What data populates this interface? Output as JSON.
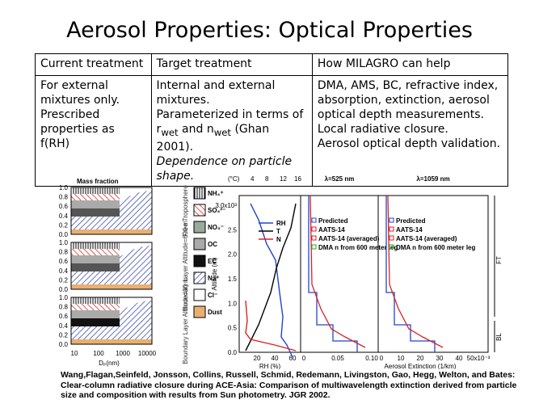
{
  "header": {
    "title": "Aerosol Properties: Optical Properties"
  },
  "table": {
    "headers": [
      "Current treatment",
      "Target treatment",
      "How MILAGRO can help"
    ],
    "rows": [
      [
        [
          [
            {
              "t": "For external mixtures only."
            }
          ],
          [
            {
              "t": "Prescribed properties as f(RH)"
            }
          ]
        ],
        [
          [
            {
              "t": "Internal and external mixtures."
            }
          ],
          [
            {
              "t": "Parameterized in terms of r"
            },
            {
              "sub": "wet"
            },
            {
              "t": " and n"
            },
            {
              "sub": "wet"
            },
            {
              "t": " (Ghan 2001)."
            }
          ],
          [
            {
              "i": "Dependence on particle shape."
            }
          ]
        ],
        [
          [
            {
              "t": "DMA, AMS, BC, refractive index, absorption, extinction, aerosol optical depth measurements."
            }
          ],
          [
            {
              "t": "Local radiative closure."
            }
          ],
          [
            {
              "t": "Aerosol optical depth validation."
            }
          ]
        ]
      ]
    ]
  },
  "figure": {
    "mass_panel": {
      "title": "Mass fraction",
      "yticks": [
        "0.0",
        "0.2",
        "0.4",
        "0.6",
        "0.8",
        "1.0"
      ],
      "xticks": [
        "10",
        "100",
        "1000",
        "10000"
      ],
      "xlabel": "Dₚ(nm)",
      "layers": [
        "Free Troposphere",
        "Boundary Layer Altitude=600 m",
        "Boundary Layer Altitude=30 m"
      ]
    },
    "legend": [
      "NH₄⁺",
      "SO₄²⁻",
      "NO₃⁻",
      "OC",
      "EC",
      "Na⁺",
      "Cl⁻",
      "Dust"
    ],
    "profile": {
      "top_axis": [
        "(°C)",
        "4",
        "8",
        "12",
        "16"
      ],
      "yticks": [
        "0.0",
        "0.5",
        "1.0",
        "1.5",
        "2.0",
        "2.5",
        "3.0x10³"
      ],
      "ylabel": "Altitude (m)",
      "legend": [
        "RH",
        "T",
        "N"
      ],
      "xticks": [
        "20",
        "40",
        "60"
      ],
      "xlabel": "RH (%)"
    },
    "extinction": {
      "panels": [
        "λ=525 nm",
        "λ=1059 nm"
      ],
      "legend": [
        "Predicted",
        "AATS-14",
        "AATS-14 (averaged)",
        "DMA n from 600 meter leg"
      ],
      "xticks_left": [
        "0",
        "0.05",
        "0.10"
      ],
      "xticks_right": [
        "0",
        "10",
        "20",
        "30",
        "40",
        "50x10⁻³"
      ],
      "xlabel": "Aerosol Extinction (1/km)",
      "regions": [
        "FT",
        "BL"
      ]
    }
  },
  "citation": "Wang,Flagan,Seinfeld, Jonsson, Collins, Russell, Schmid, Redemann, Livingston, Gao, Hegg, Welton, and Bates: Clear-column radiative closure during ACE-Asia: Comparison of multiwavelength extinction derived from particle size and composition with results from Sun photometry. JGR 2002."
}
